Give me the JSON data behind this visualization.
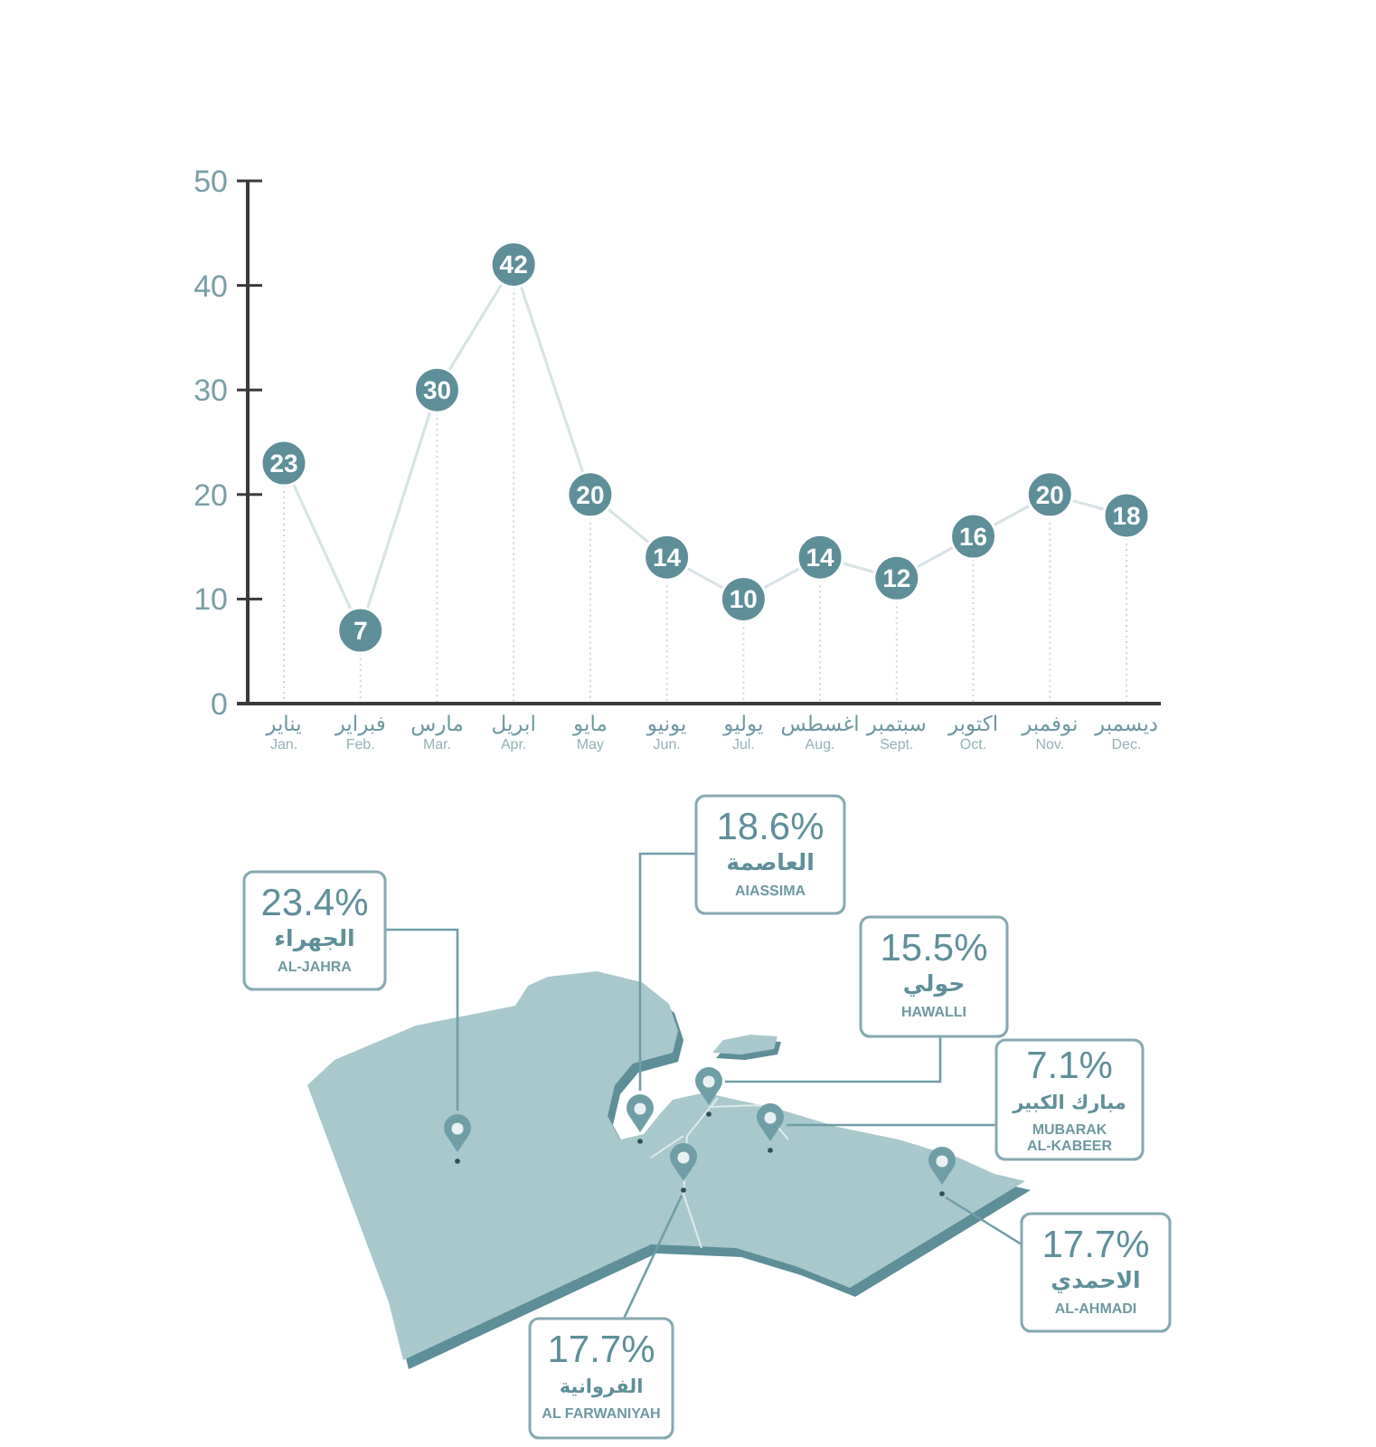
{
  "chart_data": [
    {
      "type": "line",
      "categories": [
        "يناير\nJan.",
        "فبراير\nFeb.",
        "مارس\nMar.",
        "ابريل\nApr.",
        "مايو\nMay",
        "يونيو\nJun.",
        "يوليو\nJul.",
        "اغسطس\nAug.",
        "سبتمبر\nSept.",
        "اكتوبر\nOct.",
        "نوفمبر\nNov.",
        "ديسمبر\nDec."
      ],
      "series": [
        {
          "color": "#5e8e98",
          "values": [
            23,
            7,
            30,
            42,
            20,
            14,
            10,
            14,
            12,
            16,
            20,
            18
          ]
        }
      ],
      "ylim": [
        0,
        50
      ],
      "yticks": [
        0,
        10,
        20,
        30,
        40,
        50
      ],
      "data_labels": true,
      "marker": "circle",
      "line_style": "solid"
    },
    {
      "type": "other",
      "categories": [
        "الجهراء\nAL-JAHRA",
        "العاصمة\nAIASSIMA",
        "حولي\nHAWALLI",
        "مبارك الكبير\nMUBARAK\nAL-KABEER",
        "الاحمدي\nAL-AHMADI",
        "الفروانية\nAL FARWANIYAH"
      ],
      "values": [
        23.4,
        18.6,
        15.5,
        7.1,
        17.7,
        17.7
      ],
      "value_labels": [
        "23.4%",
        "18.6%",
        "15.5%",
        "7.1%",
        "17.7%",
        "17.7%"
      ]
    }
  ]
}
